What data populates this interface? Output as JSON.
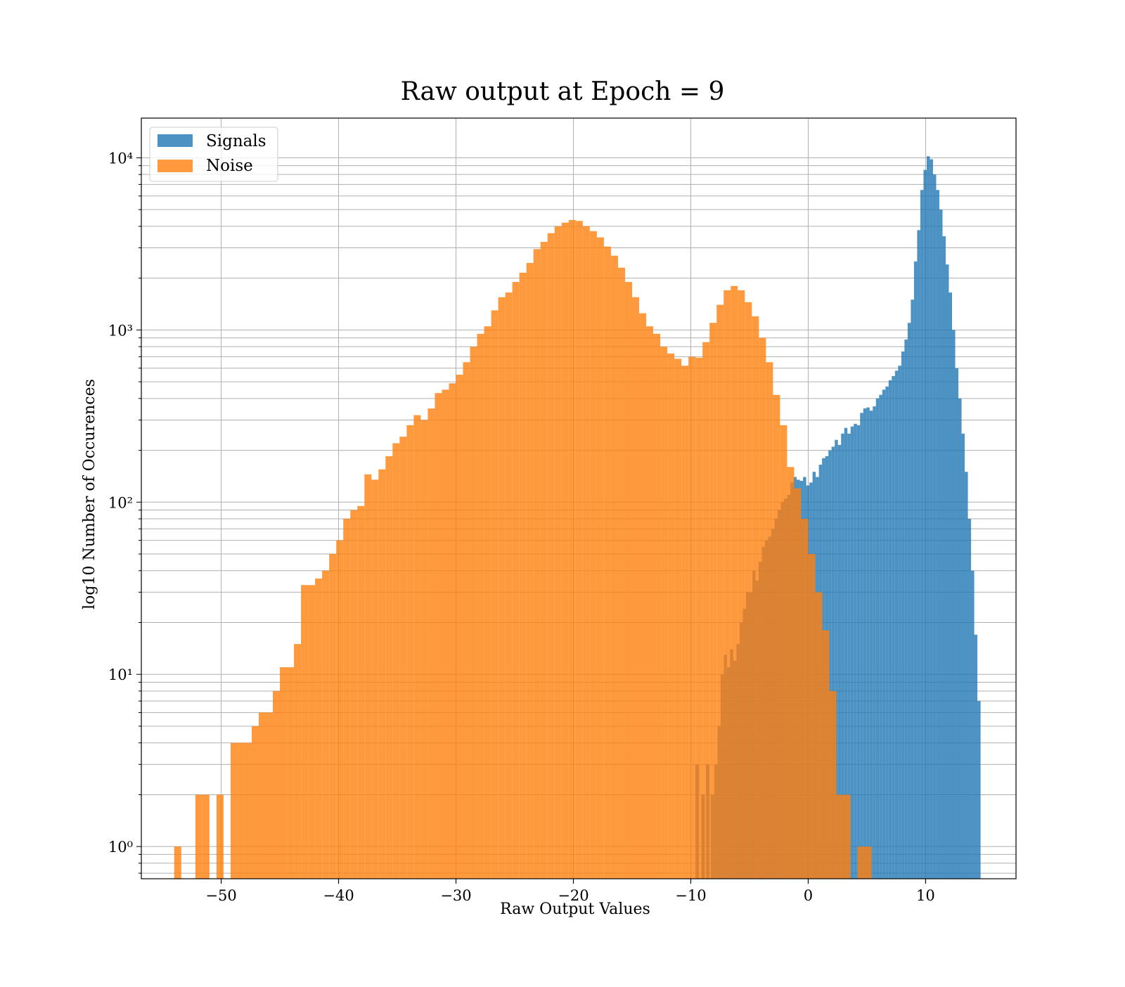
{
  "chart_data": {
    "type": "bar",
    "title": "Raw output at Epoch = 9",
    "xlabel": "Raw Output Values",
    "ylabel": "log10 Number of Occurences",
    "xlim": [
      -56.8,
      17.7
    ],
    "ylim": [
      0.65,
      17000
    ],
    "yscale": "log",
    "grid": true,
    "legend_position": "top-left",
    "x_ticks": [
      -50,
      -40,
      -30,
      -20,
      -10,
      0,
      10
    ],
    "x_tick_labels": [
      "−50",
      "−40",
      "−30",
      "−20",
      "−10",
      "0",
      "10"
    ],
    "y_ticks": [
      1,
      10,
      100,
      1000,
      10000
    ],
    "y_tick_labels": [
      "10⁰",
      "10¹",
      "10²",
      "10³",
      "10⁴"
    ],
    "series": [
      {
        "name": "Signals",
        "color": "#1f77b4",
        "opacity": 0.8,
        "bins": [
          [
            -9.6,
            -9.3,
            3
          ],
          [
            -9.1,
            -8.8,
            2
          ],
          [
            -8.7,
            -8.4,
            3
          ],
          [
            -8.3,
            -8.0,
            2
          ],
          [
            -8.0,
            -7.73,
            3
          ],
          [
            -7.73,
            -7.46,
            5
          ],
          [
            -7.46,
            -7.19,
            10
          ],
          [
            -7.19,
            -6.92,
            13
          ],
          [
            -6.92,
            -6.65,
            11
          ],
          [
            -6.65,
            -6.38,
            14
          ],
          [
            -6.38,
            -6.11,
            12
          ],
          [
            -6.11,
            -5.84,
            15
          ],
          [
            -5.84,
            -5.57,
            20
          ],
          [
            -5.57,
            -5.3,
            24
          ],
          [
            -5.3,
            -5.03,
            30
          ],
          [
            -5.03,
            -4.76,
            30
          ],
          [
            -4.76,
            -4.49,
            40
          ],
          [
            -4.49,
            -4.22,
            35
          ],
          [
            -4.22,
            -3.95,
            45
          ],
          [
            -3.95,
            -3.68,
            55
          ],
          [
            -3.68,
            -3.41,
            60
          ],
          [
            -3.41,
            -3.14,
            63
          ],
          [
            -3.14,
            -2.87,
            70
          ],
          [
            -2.87,
            -2.6,
            80
          ],
          [
            -2.6,
            -2.33,
            90
          ],
          [
            -2.33,
            -2.06,
            100
          ],
          [
            -2.06,
            -1.79,
            105
          ],
          [
            -1.79,
            -1.52,
            110
          ],
          [
            -1.52,
            -1.25,
            130
          ],
          [
            -1.25,
            -0.98,
            140
          ],
          [
            -0.98,
            -0.71,
            135
          ],
          [
            -0.71,
            -0.44,
            133
          ],
          [
            -0.44,
            -0.17,
            140
          ],
          [
            -0.17,
            0.1,
            125
          ],
          [
            0.1,
            0.37,
            130
          ],
          [
            0.37,
            0.64,
            150
          ],
          [
            0.64,
            0.91,
            140
          ],
          [
            0.91,
            1.18,
            165
          ],
          [
            1.18,
            1.45,
            180
          ],
          [
            1.45,
            1.72,
            185
          ],
          [
            1.72,
            1.99,
            200
          ],
          [
            1.99,
            2.26,
            210
          ],
          [
            2.26,
            2.53,
            230
          ],
          [
            2.53,
            2.8,
            215
          ],
          [
            2.8,
            3.07,
            250
          ],
          [
            3.07,
            3.34,
            270
          ],
          [
            3.34,
            3.61,
            250
          ],
          [
            3.61,
            3.88,
            275
          ],
          [
            3.88,
            4.15,
            285
          ],
          [
            4.15,
            4.42,
            280
          ],
          [
            4.42,
            4.69,
            330
          ],
          [
            4.69,
            4.96,
            350
          ],
          [
            4.96,
            5.23,
            355
          ],
          [
            5.23,
            5.5,
            340
          ],
          [
            5.5,
            5.77,
            360
          ],
          [
            5.77,
            6.04,
            400
          ],
          [
            6.04,
            6.31,
            420
          ],
          [
            6.31,
            6.58,
            450
          ],
          [
            6.58,
            6.85,
            470
          ],
          [
            6.85,
            7.12,
            510
          ],
          [
            7.12,
            7.39,
            540
          ],
          [
            7.39,
            7.66,
            580
          ],
          [
            7.66,
            7.93,
            620
          ],
          [
            7.93,
            8.2,
            750
          ],
          [
            8.2,
            8.47,
            880
          ],
          [
            8.47,
            8.74,
            1100
          ],
          [
            8.74,
            9.01,
            1500
          ],
          [
            9.01,
            9.28,
            2500
          ],
          [
            9.28,
            9.55,
            3800
          ],
          [
            9.55,
            9.82,
            6500
          ],
          [
            9.82,
            10.09,
            8500
          ],
          [
            10.09,
            10.36,
            10200
          ],
          [
            10.36,
            10.63,
            9800
          ],
          [
            10.63,
            10.9,
            8000
          ],
          [
            10.9,
            11.17,
            6500
          ],
          [
            11.17,
            11.44,
            5000
          ],
          [
            11.44,
            11.71,
            3500
          ],
          [
            11.71,
            11.98,
            2400
          ],
          [
            11.98,
            12.25,
            1650
          ],
          [
            12.25,
            12.52,
            1000
          ],
          [
            12.52,
            12.79,
            600
          ],
          [
            12.79,
            13.06,
            400
          ],
          [
            13.06,
            13.33,
            250
          ],
          [
            13.33,
            13.6,
            150
          ],
          [
            13.6,
            13.87,
            80
          ],
          [
            13.87,
            14.14,
            40
          ],
          [
            14.14,
            14.41,
            17
          ],
          [
            14.41,
            14.68,
            7
          ]
        ]
      },
      {
        "name": "Noise",
        "color": "#ff7f0e",
        "opacity": 0.8,
        "bins": [
          [
            -54.0,
            -53.4,
            1
          ],
          [
            -52.2,
            -51.6,
            2
          ],
          [
            -51.6,
            -51.0,
            2
          ],
          [
            -50.4,
            -49.8,
            2
          ],
          [
            -49.2,
            -48.6,
            4
          ],
          [
            -48.6,
            -48.0,
            4
          ],
          [
            -48.0,
            -47.4,
            4
          ],
          [
            -47.4,
            -46.8,
            5
          ],
          [
            -46.8,
            -46.2,
            6
          ],
          [
            -46.2,
            -45.6,
            6
          ],
          [
            -45.6,
            -45.0,
            8
          ],
          [
            -45.0,
            -44.4,
            11
          ],
          [
            -44.4,
            -43.8,
            11
          ],
          [
            -43.8,
            -43.2,
            15
          ],
          [
            -43.2,
            -42.6,
            33
          ],
          [
            -42.6,
            -42.0,
            33
          ],
          [
            -42.0,
            -41.4,
            36
          ],
          [
            -41.4,
            -40.8,
            40
          ],
          [
            -40.8,
            -40.2,
            50
          ],
          [
            -40.2,
            -39.6,
            60
          ],
          [
            -39.6,
            -39.0,
            80
          ],
          [
            -39.0,
            -38.4,
            90
          ],
          [
            -38.4,
            -37.8,
            95
          ],
          [
            -37.8,
            -37.2,
            145
          ],
          [
            -37.2,
            -36.6,
            135
          ],
          [
            -36.6,
            -36.0,
            155
          ],
          [
            -36.0,
            -35.4,
            185
          ],
          [
            -35.4,
            -34.8,
            220
          ],
          [
            -34.8,
            -34.2,
            240
          ],
          [
            -34.2,
            -33.6,
            280
          ],
          [
            -33.6,
            -33.0,
            320
          ],
          [
            -33.0,
            -32.4,
            300
          ],
          [
            -32.4,
            -31.8,
            350
          ],
          [
            -31.8,
            -31.2,
            430
          ],
          [
            -31.2,
            -30.6,
            450
          ],
          [
            -30.6,
            -30.0,
            490
          ],
          [
            -30.0,
            -29.4,
            550
          ],
          [
            -29.4,
            -28.8,
            650
          ],
          [
            -28.8,
            -28.2,
            800
          ],
          [
            -28.2,
            -27.6,
            950
          ],
          [
            -27.6,
            -27.0,
            1050
          ],
          [
            -27.0,
            -26.4,
            1300
          ],
          [
            -26.4,
            -25.8,
            1550
          ],
          [
            -25.8,
            -25.2,
            1650
          ],
          [
            -25.2,
            -24.6,
            1900
          ],
          [
            -24.6,
            -24.0,
            2150
          ],
          [
            -24.0,
            -23.4,
            2450
          ],
          [
            -23.4,
            -22.8,
            2950
          ],
          [
            -22.8,
            -22.2,
            3250
          ],
          [
            -22.2,
            -21.6,
            3650
          ],
          [
            -21.6,
            -21.0,
            4000
          ],
          [
            -21.0,
            -20.4,
            4200
          ],
          [
            -20.4,
            -19.8,
            4350
          ],
          [
            -19.8,
            -19.2,
            4300
          ],
          [
            -19.2,
            -18.6,
            4000
          ],
          [
            -18.6,
            -18.0,
            3750
          ],
          [
            -18.0,
            -17.4,
            3450
          ],
          [
            -17.4,
            -16.8,
            3050
          ],
          [
            -16.8,
            -16.2,
            2700
          ],
          [
            -16.2,
            -15.6,
            2300
          ],
          [
            -15.6,
            -15.0,
            1900
          ],
          [
            -15.0,
            -14.4,
            1550
          ],
          [
            -14.4,
            -13.8,
            1250
          ],
          [
            -13.8,
            -13.2,
            1050
          ],
          [
            -13.2,
            -12.6,
            950
          ],
          [
            -12.6,
            -12.0,
            800
          ],
          [
            -12.0,
            -11.4,
            730
          ],
          [
            -11.4,
            -10.8,
            680
          ],
          [
            -10.8,
            -10.2,
            620
          ],
          [
            -10.2,
            -9.6,
            700
          ],
          [
            -9.6,
            -9.0,
            690
          ],
          [
            -9.0,
            -8.4,
            850
          ],
          [
            -8.4,
            -7.8,
            1100
          ],
          [
            -7.8,
            -7.2,
            1400
          ],
          [
            -7.2,
            -6.6,
            1700
          ],
          [
            -6.6,
            -6.0,
            1800
          ],
          [
            -6.0,
            -5.4,
            1700
          ],
          [
            -5.4,
            -4.8,
            1450
          ],
          [
            -4.8,
            -4.2,
            1200
          ],
          [
            -4.2,
            -3.6,
            900
          ],
          [
            -3.6,
            -3.0,
            650
          ],
          [
            -3.0,
            -2.4,
            420
          ],
          [
            -2.4,
            -1.8,
            280
          ],
          [
            -1.8,
            -1.2,
            160
          ],
          [
            -1.2,
            -0.6,
            120
          ],
          [
            -0.6,
            0.0,
            80
          ],
          [
            0.0,
            0.6,
            50
          ],
          [
            0.6,
            1.2,
            30
          ],
          [
            1.2,
            1.8,
            18
          ],
          [
            1.8,
            2.4,
            8
          ],
          [
            2.4,
            3.0,
            2
          ],
          [
            3.0,
            3.6,
            2
          ],
          [
            4.2,
            4.8,
            1
          ],
          [
            4.8,
            5.4,
            1
          ]
        ]
      }
    ]
  }
}
